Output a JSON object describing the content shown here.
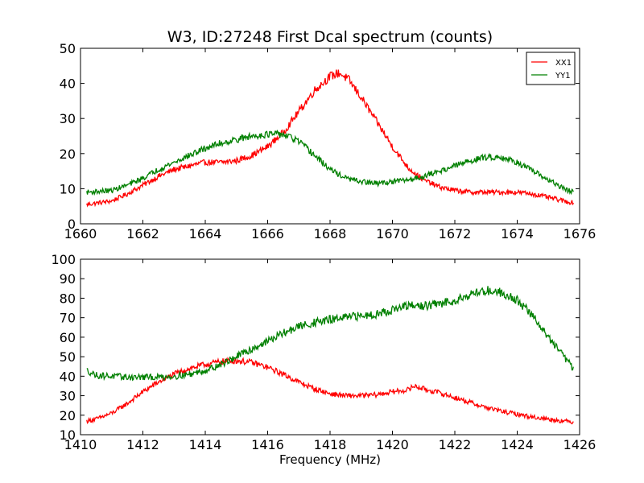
{
  "chart_data": [
    {
      "type": "line",
      "title": "W3, ID:27248 First Dcal spectrum (counts)",
      "xlabel": "",
      "ylabel": "",
      "xlim": [
        1660,
        1676
      ],
      "ylim": [
        0,
        50
      ],
      "xticks": [
        1660,
        1662,
        1664,
        1666,
        1668,
        1670,
        1672,
        1674,
        1676
      ],
      "yticks": [
        0,
        10,
        20,
        30,
        40,
        50
      ],
      "grid": false,
      "legend": "top-right",
      "series": [
        {
          "name": "XX1",
          "color": "#ff0000",
          "x": [
            1660.2,
            1661.0,
            1661.5,
            1662.0,
            1662.5,
            1663.0,
            1663.5,
            1664.0,
            1664.5,
            1665.0,
            1665.5,
            1666.0,
            1666.5,
            1667.0,
            1667.5,
            1668.0,
            1668.3,
            1668.6,
            1669.0,
            1669.5,
            1670.0,
            1670.5,
            1671.0,
            1671.5,
            1672.0,
            1672.5,
            1673.0,
            1673.5,
            1674.0,
            1674.5,
            1675.0,
            1675.5,
            1675.8
          ],
          "y": [
            5.5,
            6.5,
            8.5,
            11,
            13.5,
            15.5,
            16.5,
            17.5,
            17.5,
            18,
            19.5,
            22,
            26,
            32,
            38,
            42,
            43,
            41,
            36,
            29,
            22,
            16,
            12.5,
            10.5,
            9.5,
            9,
            9,
            9,
            9,
            8.5,
            7.5,
            6.5,
            6
          ]
        },
        {
          "name": "YY1",
          "color": "#008000",
          "x": [
            1660.2,
            1661.0,
            1661.5,
            1662.0,
            1662.5,
            1663.0,
            1663.5,
            1664.0,
            1664.5,
            1665.0,
            1665.5,
            1666.0,
            1666.5,
            1667.0,
            1667.5,
            1668.0,
            1668.5,
            1669.0,
            1669.5,
            1670.0,
            1670.5,
            1671.0,
            1671.5,
            1672.0,
            1672.5,
            1673.0,
            1673.5,
            1674.0,
            1674.5,
            1675.0,
            1675.5,
            1675.8
          ],
          "y": [
            9,
            9.5,
            11,
            13,
            15.5,
            17.5,
            19.5,
            21.5,
            23,
            24,
            25,
            25.5,
            25.5,
            23.5,
            19.5,
            15.5,
            13,
            12,
            11.5,
            12,
            12.5,
            13.5,
            15,
            16.5,
            18,
            19,
            19,
            17.5,
            15,
            12.5,
            10,
            9
          ]
        }
      ]
    },
    {
      "type": "line",
      "title": "",
      "xlabel": "Frequency (MHz)",
      "ylabel": "",
      "xlim": [
        1410,
        1426
      ],
      "ylim": [
        10,
        100
      ],
      "xticks": [
        1410,
        1412,
        1414,
        1416,
        1418,
        1420,
        1422,
        1424,
        1426
      ],
      "yticks": [
        10,
        20,
        30,
        40,
        50,
        60,
        70,
        80,
        90,
        100
      ],
      "grid": false,
      "legend": "none",
      "series": [
        {
          "color": "#ff0000",
          "x": [
            1410.2,
            1410.5,
            1411.0,
            1411.5,
            1412.0,
            1412.5,
            1413.0,
            1413.5,
            1414.0,
            1414.5,
            1415.0,
            1415.5,
            1416.0,
            1416.5,
            1417.0,
            1417.5,
            1418.0,
            1418.5,
            1419.0,
            1419.5,
            1420.0,
            1420.5,
            1420.7,
            1421.0,
            1421.5,
            1422.0,
            1422.5,
            1423.0,
            1423.5,
            1424.0,
            1424.5,
            1425.0,
            1425.5,
            1425.8
          ],
          "y": [
            17,
            18,
            21,
            26,
            32,
            37,
            41,
            44,
            46,
            47.5,
            48,
            47,
            44.5,
            41,
            37,
            33.5,
            31,
            30,
            30,
            30.5,
            32,
            33,
            35,
            33.5,
            31.5,
            29,
            26.5,
            24,
            22,
            20.5,
            19,
            18,
            17,
            16.5
          ]
        },
        {
          "color": "#008000",
          "x": [
            1410.2,
            1410.5,
            1411.0,
            1411.5,
            1412.0,
            1412.5,
            1413.0,
            1413.5,
            1414.0,
            1414.5,
            1415.0,
            1415.5,
            1416.0,
            1416.5,
            1417.0,
            1417.5,
            1418.0,
            1418.5,
            1419.0,
            1419.5,
            1420.0,
            1420.5,
            1421.0,
            1421.5,
            1422.0,
            1422.5,
            1423.0,
            1423.5,
            1424.0,
            1424.5,
            1425.0,
            1425.5,
            1425.8
          ],
          "y": [
            43,
            40.5,
            40,
            39.5,
            39.5,
            39.5,
            40,
            41,
            43,
            46,
            50,
            54,
            58,
            62,
            65.5,
            67.5,
            69,
            70,
            71,
            72,
            74,
            76,
            76,
            77,
            79,
            82,
            84,
            83,
            79,
            71,
            60,
            50,
            44
          ]
        }
      ]
    }
  ]
}
